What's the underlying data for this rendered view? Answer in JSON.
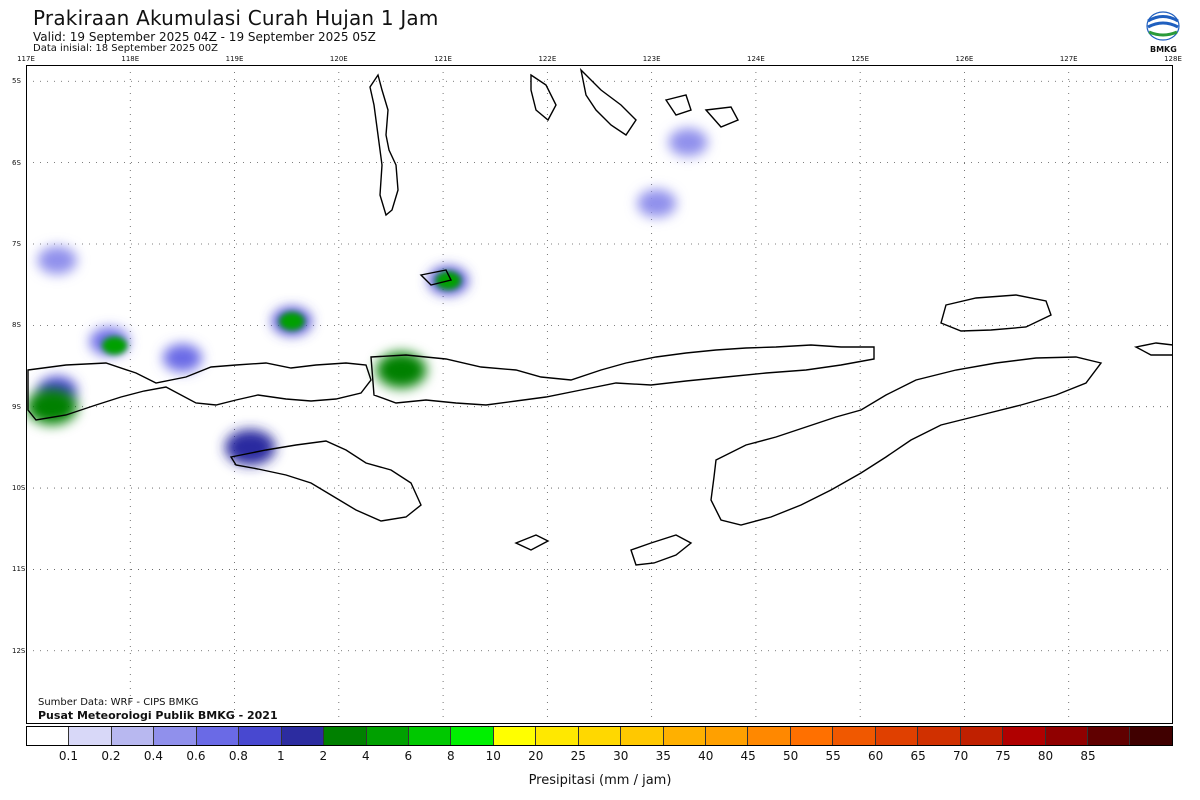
{
  "header": {
    "title": "Prakiraan Akumulasi Curah Hujan 1 Jam",
    "valid": "Valid: 19 September 2025 04Z - 19 September 2025 05Z",
    "initial": "Data inisial: 18 September 2025 00Z",
    "logo_text": "BMKG"
  },
  "map": {
    "lon_labels": [
      "117E",
      "118E",
      "119E",
      "120E",
      "121E",
      "122E",
      "123E",
      "124E",
      "125E",
      "126E",
      "127E",
      "128E"
    ],
    "lat_labels": [
      "5S",
      "6S",
      "7S",
      "8S",
      "9S",
      "10S",
      "11S",
      "12S"
    ],
    "lon_range": [
      117,
      128
    ],
    "lat_range": [
      -4.8,
      -12.9
    ],
    "grid": "dotted",
    "land_outline_color": "#000000",
    "rain_cells": [
      {
        "lon": 117.3,
        "lat": -8.8,
        "mm": 0.6
      },
      {
        "lon": 117.25,
        "lat": -9.0,
        "mm": 1
      },
      {
        "lon": 117.8,
        "lat": -8.2,
        "mm": 0.4
      },
      {
        "lon": 117.85,
        "lat": -8.25,
        "mm": 2
      },
      {
        "lon": 118.5,
        "lat": -8.4,
        "mm": 0.4
      },
      {
        "lon": 119.55,
        "lat": -7.95,
        "mm": 0.6
      },
      {
        "lon": 119.55,
        "lat": -7.95,
        "mm": 2
      },
      {
        "lon": 120.6,
        "lat": -8.55,
        "mm": 1
      },
      {
        "lon": 121.05,
        "lat": -7.45,
        "mm": 0.6
      },
      {
        "lon": 121.05,
        "lat": -7.45,
        "mm": 2
      },
      {
        "lon": 119.15,
        "lat": -9.5,
        "mm": 0.8
      },
      {
        "lon": 123.35,
        "lat": -5.75,
        "mm": 0.2
      },
      {
        "lon": 123.05,
        "lat": -6.5,
        "mm": 0.2
      },
      {
        "lon": 117.3,
        "lat": -7.2,
        "mm": 0.2
      }
    ]
  },
  "footer": {
    "source": "Sumber Data: WRF - CIPS BMKG",
    "org": "Pusat Meteorologi Publik BMKG - 2021",
    "colorbar_label": "Presipitasi (mm / jam)"
  },
  "colorbar": {
    "colors": [
      "#ffffff",
      "#d8d8f8",
      "#b8b8f0",
      "#9090ec",
      "#6a6ae6",
      "#4848d0",
      "#2c2ca0",
      "#008000",
      "#00a000",
      "#00c800",
      "#00f000",
      "#ffff00",
      "#ffe800",
      "#ffd800",
      "#ffc800",
      "#ffb000",
      "#ffa000",
      "#ff8800",
      "#ff7000",
      "#f05800",
      "#e04000",
      "#d03000",
      "#c02000",
      "#b00000",
      "#900000",
      "#600000",
      "#400000"
    ],
    "ticks": [
      "0.1",
      "0.2",
      "0.4",
      "0.6",
      "0.8",
      "1",
      "2",
      "4",
      "6",
      "8",
      "10",
      "20",
      "25",
      "30",
      "35",
      "40",
      "45",
      "50",
      "55",
      "60",
      "65",
      "70",
      "75",
      "80",
      "85"
    ]
  }
}
